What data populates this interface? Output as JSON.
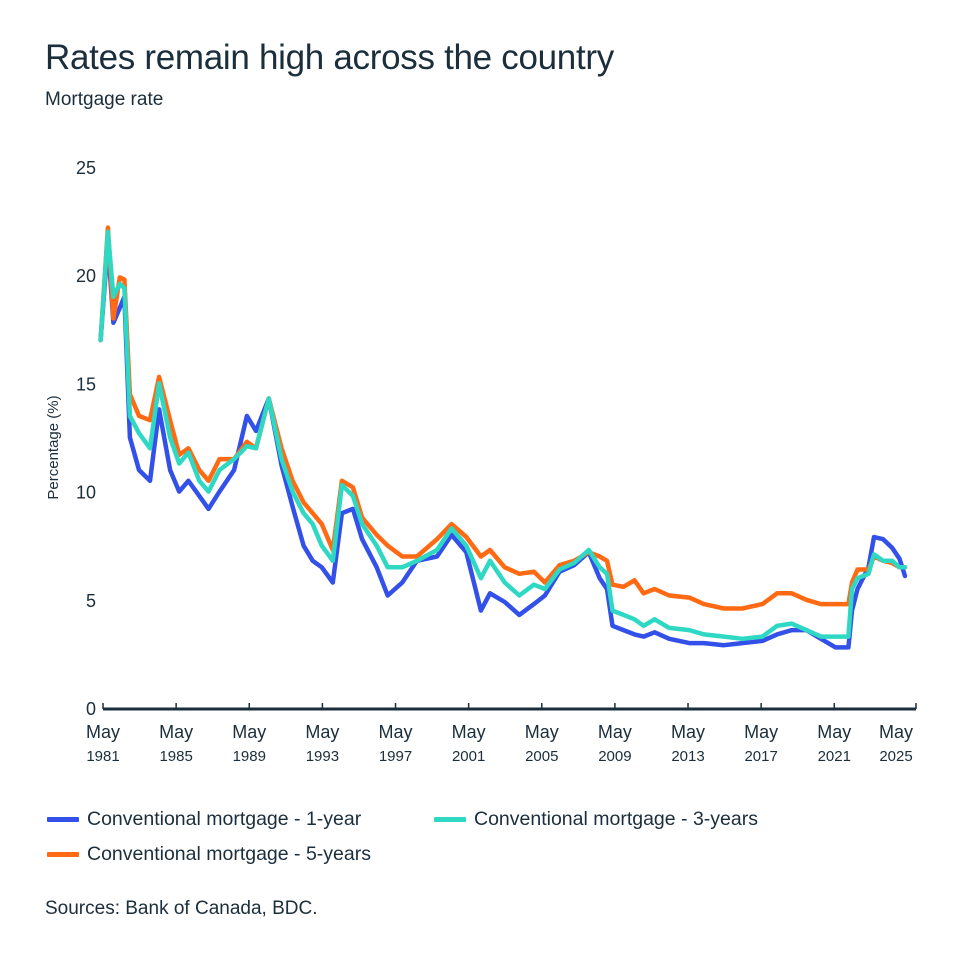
{
  "header": {
    "title": "Rates remain high across the country",
    "subtitle": "Mortgage rate"
  },
  "source": "Sources: Bank of Canada, BDC.",
  "chart_data": {
    "type": "line",
    "title": "Rates remain high across the country",
    "subtitle": "Mortgage rate",
    "xlabel": "",
    "ylabel": "Percentage (%)",
    "ylim": [
      0,
      25
    ],
    "xlim": [
      1981.33,
      2025.8
    ],
    "yticks": [
      0,
      5,
      10,
      15,
      20,
      25
    ],
    "xticks": [
      {
        "value": 1981.33,
        "line1": "May",
        "line2": "1981"
      },
      {
        "value": 1985.33,
        "line1": "May",
        "line2": "1985"
      },
      {
        "value": 1989.33,
        "line1": "May",
        "line2": "1989"
      },
      {
        "value": 1993.33,
        "line1": "May",
        "line2": "1993"
      },
      {
        "value": 1997.33,
        "line1": "May",
        "line2": "1997"
      },
      {
        "value": 2001.33,
        "line1": "May",
        "line2": "2001"
      },
      {
        "value": 2005.33,
        "line1": "May",
        "line2": "2005"
      },
      {
        "value": 2009.33,
        "line1": "May",
        "line2": "2009"
      },
      {
        "value": 2013.33,
        "line1": "May",
        "line2": "2013"
      },
      {
        "value": 2017.33,
        "line1": "May",
        "line2": "2017"
      },
      {
        "value": 2021.33,
        "line1": "May",
        "line2": "2021"
      },
      {
        "value": 2025.33,
        "line1": "May",
        "line2": "2025"
      }
    ],
    "grid": false,
    "legend_position": "bottom",
    "x": [
      1981.2,
      1981.6,
      1981.9,
      1982.25,
      1982.5,
      1982.8,
      1983.3,
      1983.9,
      1984.4,
      1985.0,
      1985.5,
      1986.0,
      1986.6,
      1987.1,
      1987.7,
      1988.5,
      1989.2,
      1989.7,
      1990.4,
      1991.1,
      1991.7,
      1992.3,
      1992.8,
      1993.3,
      1993.9,
      1994.4,
      1995.0,
      1995.5,
      1996.3,
      1996.9,
      1997.7,
      1998.5,
      1999.6,
      2000.4,
      2001.2,
      2002.0,
      2002.5,
      2003.3,
      2004.1,
      2004.9,
      2005.5,
      2006.3,
      2007.1,
      2007.9,
      2008.5,
      2008.9,
      2009.2,
      2009.8,
      2010.4,
      2010.9,
      2011.5,
      2012.3,
      2013.4,
      2014.2,
      2015.3,
      2016.3,
      2017.4,
      2018.2,
      2019.0,
      2019.8,
      2020.6,
      2021.4,
      2022.1,
      2022.3,
      2022.6,
      2023.2,
      2023.5,
      2024.0,
      2024.5,
      2024.9,
      2025.2
    ],
    "series": [
      {
        "name": "Conventional mortgage - 1-year",
        "color": "#3350e8",
        "values": [
          17.0,
          21.5,
          17.8,
          18.5,
          19.0,
          12.5,
          11.0,
          10.5,
          13.8,
          11.0,
          10.0,
          10.5,
          9.8,
          9.2,
          10.0,
          11.0,
          13.5,
          12.8,
          14.3,
          11.2,
          9.3,
          7.5,
          6.8,
          6.5,
          5.8,
          9.0,
          9.2,
          7.8,
          6.5,
          5.2,
          5.8,
          6.8,
          7.0,
          8.0,
          7.2,
          4.5,
          5.3,
          4.9,
          4.3,
          4.8,
          5.2,
          6.3,
          6.6,
          7.2,
          6.0,
          5.5,
          3.8,
          3.6,
          3.4,
          3.3,
          3.5,
          3.2,
          3.0,
          3.0,
          2.9,
          3.0,
          3.1,
          3.4,
          3.6,
          3.6,
          3.2,
          2.8,
          2.8,
          4.5,
          5.5,
          6.5,
          7.9,
          7.8,
          7.4,
          6.9,
          6.1
        ]
      },
      {
        "name": "Conventional mortgage - 3-years",
        "color": "#2ed8c3",
        "values": [
          17.0,
          22.0,
          19.0,
          19.6,
          19.4,
          13.5,
          12.7,
          12.0,
          15.0,
          12.5,
          11.3,
          11.8,
          10.5,
          10.0,
          11.0,
          11.5,
          12.1,
          12.0,
          14.3,
          11.5,
          10.0,
          9.0,
          8.5,
          7.5,
          6.8,
          10.3,
          9.8,
          8.5,
          7.5,
          6.5,
          6.5,
          6.8,
          7.3,
          8.3,
          7.5,
          6.0,
          6.8,
          5.8,
          5.2,
          5.7,
          5.5,
          6.4,
          6.7,
          7.3,
          6.5,
          6.2,
          4.5,
          4.3,
          4.1,
          3.8,
          4.1,
          3.7,
          3.6,
          3.4,
          3.3,
          3.2,
          3.3,
          3.8,
          3.9,
          3.6,
          3.3,
          3.3,
          3.3,
          5.5,
          6.0,
          6.2,
          7.1,
          6.8,
          6.8,
          6.5,
          6.5
        ]
      },
      {
        "name": "Conventional mortgage - 5-years",
        "color": "#ff6a13",
        "values": [
          17.0,
          22.2,
          18.0,
          19.9,
          19.8,
          14.5,
          13.5,
          13.3,
          15.3,
          13.3,
          11.7,
          12.0,
          11.0,
          10.5,
          11.5,
          11.5,
          12.3,
          12.0,
          14.3,
          12.0,
          10.5,
          9.5,
          9.0,
          8.5,
          7.3,
          10.5,
          10.2,
          8.8,
          8.0,
          7.5,
          7.0,
          7.0,
          7.8,
          8.5,
          7.9,
          7.0,
          7.3,
          6.5,
          6.2,
          6.3,
          5.8,
          6.6,
          6.8,
          7.2,
          7.0,
          6.8,
          5.7,
          5.6,
          5.9,
          5.3,
          5.5,
          5.2,
          5.1,
          4.8,
          4.6,
          4.6,
          4.8,
          5.3,
          5.3,
          5.0,
          4.8,
          4.8,
          4.8,
          5.8,
          6.4,
          6.4,
          7.0,
          6.8,
          6.7,
          6.5,
          6.5
        ]
      }
    ]
  },
  "legend": {
    "items": [
      {
        "label": "Conventional mortgage - 1-year",
        "color": "#3350e8"
      },
      {
        "label": "Conventional mortgage - 3-years",
        "color": "#2ed8c3"
      },
      {
        "label": "Conventional mortgage - 5-years",
        "color": "#ff6a13"
      }
    ]
  }
}
